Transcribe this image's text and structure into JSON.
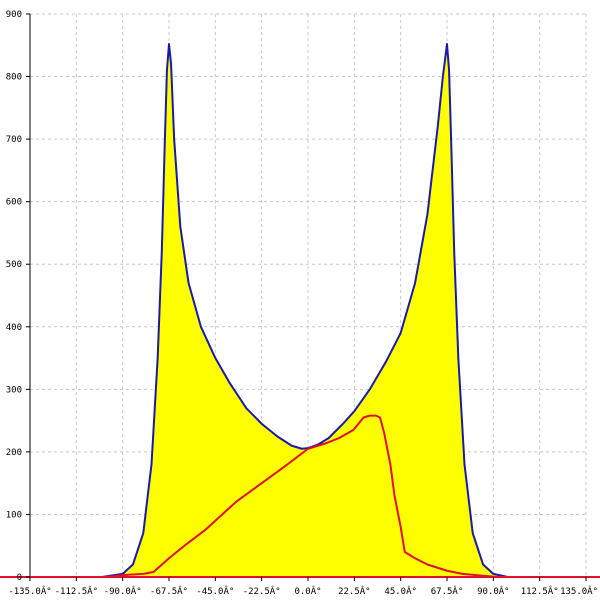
{
  "chart_data": {
    "type": "line",
    "title": "",
    "xlabel": "",
    "ylabel": "",
    "xlim": [
      -135,
      135
    ],
    "ylim": [
      0,
      900
    ],
    "grid": true,
    "x_ticks": [
      -135,
      -112.5,
      -90,
      -67.5,
      -45,
      -22.5,
      0,
      22.5,
      45,
      67.5,
      90,
      112.5,
      135
    ],
    "x_tick_labels": [
      "-135.0Â°",
      "-112.5Â°",
      "-90.0Â°",
      "-67.5Â°",
      "-45.0Â°",
      "-22.5Â°",
      "0.0Â°",
      "22.5Â°",
      "45.0Â°",
      "67.5Â°",
      "90.0Â°",
      "112.5Â°",
      "135.0Â°"
    ],
    "y_ticks": [
      0,
      100,
      200,
      300,
      400,
      500,
      600,
      700,
      800,
      900
    ],
    "y_tick_labels": [
      "0",
      "100",
      "200",
      "300",
      "400",
      "500",
      "600",
      "700",
      "800",
      "900"
    ],
    "series": [
      {
        "color": "#1a1aa8",
        "fill": "#ffff00",
        "points": [
          [
            -100,
            0
          ],
          [
            -90,
            5
          ],
          [
            -85,
            20
          ],
          [
            -80,
            70
          ],
          [
            -76,
            180
          ],
          [
            -73,
            350
          ],
          [
            -71,
            520
          ],
          [
            -69.5,
            700
          ],
          [
            -68.5,
            810
          ],
          [
            -67.5,
            852
          ],
          [
            -66.5,
            820
          ],
          [
            -65,
            700
          ],
          [
            -62,
            560
          ],
          [
            -58,
            470
          ],
          [
            -52,
            400
          ],
          [
            -45,
            350
          ],
          [
            -38,
            310
          ],
          [
            -30,
            270
          ],
          [
            -22.5,
            245
          ],
          [
            -15,
            225
          ],
          [
            -8,
            210
          ],
          [
            -3,
            205
          ],
          [
            0,
            206
          ],
          [
            5,
            212
          ],
          [
            10,
            222
          ],
          [
            17,
            245
          ],
          [
            22.5,
            265
          ],
          [
            30,
            300
          ],
          [
            38,
            345
          ],
          [
            45,
            390
          ],
          [
            52,
            470
          ],
          [
            58,
            580
          ],
          [
            63,
            720
          ],
          [
            65.5,
            800
          ],
          [
            67.5,
            852
          ],
          [
            68.5,
            810
          ],
          [
            69.5,
            700
          ],
          [
            71,
            520
          ],
          [
            73,
            350
          ],
          [
            76,
            180
          ],
          [
            80,
            70
          ],
          [
            85,
            20
          ],
          [
            90,
            5
          ],
          [
            97,
            0
          ]
        ]
      },
      {
        "color": "#e0102a",
        "points": [
          [
            -98,
            0
          ],
          [
            -90,
            3
          ],
          [
            -80,
            5
          ],
          [
            -75,
            8
          ],
          [
            -67.5,
            30
          ],
          [
            -60,
            50
          ],
          [
            -50,
            75
          ],
          [
            -45,
            90
          ],
          [
            -35,
            120
          ],
          [
            -22.5,
            150
          ],
          [
            -10,
            180
          ],
          [
            0,
            205
          ],
          [
            8,
            213
          ],
          [
            15,
            222
          ],
          [
            22,
            235
          ],
          [
            27,
            255
          ],
          [
            30,
            258
          ],
          [
            33,
            258
          ],
          [
            35,
            255
          ],
          [
            37,
            230
          ],
          [
            40,
            180
          ],
          [
            42,
            130
          ],
          [
            45,
            80
          ],
          [
            47,
            40
          ],
          [
            52,
            30
          ],
          [
            58,
            20
          ],
          [
            67.5,
            10
          ],
          [
            75,
            5
          ],
          [
            85,
            2
          ],
          [
            92,
            0
          ]
        ]
      }
    ]
  }
}
